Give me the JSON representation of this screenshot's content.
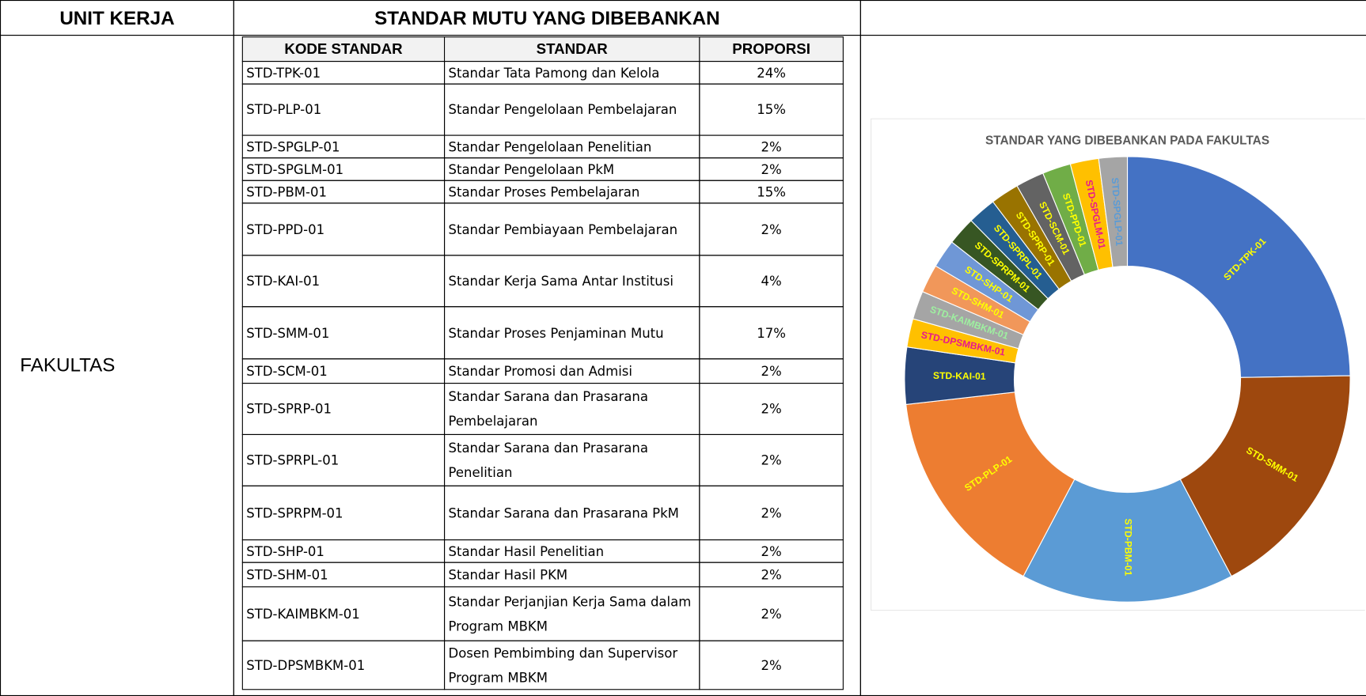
{
  "header": {
    "unit": "UNIT KERJA",
    "standards": "STANDAR MUTU YANG DIBEBANKAN"
  },
  "unit_name": "FAKULTAS",
  "table": {
    "headers": [
      "KODE STANDAR",
      "STANDAR",
      "PROPORSI"
    ],
    "rows": [
      [
        "STD-TPK-01",
        "Standar Tata Pamong dan Kelola",
        "24%"
      ],
      [
        "STD-PLP-01",
        "Standar Pengelolaan Pembelajaran",
        "15%"
      ],
      [
        "STD-SPGLP-01",
        "Standar Pengelolaan Penelitian",
        "2%"
      ],
      [
        "STD-SPGLM-01",
        "Standar Pengelolaan PkM",
        "2%"
      ],
      [
        "STD-PBM-01",
        "Standar Proses Pembelajaran",
        "15%"
      ],
      [
        "STD-PPD-01",
        "Standar Pembiayaan Pembelajaran",
        "2%"
      ],
      [
        "STD-KAI-01",
        "Standar Kerja Sama Antar Institusi",
        "4%"
      ],
      [
        "STD-SMM-01",
        "Standar Proses Penjaminan Mutu",
        "17%"
      ],
      [
        "STD-SCM-01",
        "Standar Promosi dan Admisi",
        "2%"
      ],
      [
        "STD-SPRP-01",
        "Standar Sarana dan Prasarana Pembelajaran",
        "2%"
      ],
      [
        "STD-SPRPL-01",
        "Standar Sarana dan Prasarana Penelitian",
        "2%"
      ],
      [
        "STD-SPRPM-01",
        "Standar Sarana dan Prasarana PkM",
        "2%"
      ],
      [
        "STD-SHP-01",
        "Standar Hasil Penelitian",
        "2%"
      ],
      [
        "STD-SHM-01",
        "Standar Hasil PKM",
        "2%"
      ],
      [
        "STD-KAIMBKM-01",
        "Standar Perjanjian Kerja Sama dalam Program MBKM",
        "2%"
      ],
      [
        "STD-DPSMBKM-01",
        "Dosen Pembimbing dan Supervisor Program MBKM",
        "2%"
      ]
    ]
  },
  "chart_data": {
    "type": "doughnut",
    "title": "STANDAR YANG DIBEBANKAN PADA FAKULTAS",
    "categories": [
      "STD-TPK-01",
      "STD-SMM-01",
      "STD-PBM-01",
      "STD-PLP-01",
      "STD-KAI-01",
      "STD-DPSMBKM-01",
      "STD-KAIMBKM-01",
      "STD-SHM-01",
      "STD-SHP-01",
      "STD-SPRPM-01",
      "STD-SPRPL-01",
      "STD-SPRP-01",
      "STD-SCM-01",
      "STD-PPD-01",
      "STD-SPGLM-01",
      "STD-SPGLP-01"
    ],
    "values": [
      24,
      17,
      15,
      15,
      4,
      2,
      2,
      2,
      2,
      2,
      2,
      2,
      2,
      2,
      2,
      2
    ],
    "colors": [
      "#4472c4",
      "#9e480e",
      "#5b9bd5",
      "#ed7d31",
      "#264478",
      "#ffc000",
      "#a5a5a5",
      "#f1975a",
      "#6f97d6",
      "#375623",
      "#255e91",
      "#997300",
      "#636363",
      "#70ad47",
      "#ffc000",
      "#a5a5a5"
    ],
    "label_colors": [
      "#ffff00",
      "#ffff00",
      "#ffff00",
      "#ffff00",
      "#ffff00",
      "#e8198b",
      "#9ef0a0",
      "#ffff00",
      "#ffff00",
      "#ffff00",
      "#ffff00",
      "#ffff00",
      "#ffff00",
      "#ffff00",
      "#e8198b",
      "#5b9bd5"
    ]
  }
}
